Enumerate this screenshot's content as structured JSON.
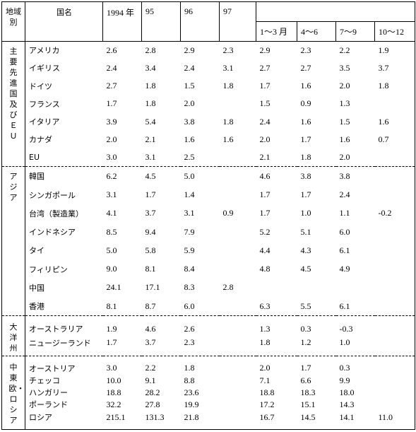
{
  "header": {
    "region": "地域別",
    "name": "国名",
    "years": [
      "1994 年",
      "95",
      "96",
      "97"
    ],
    "quarters": [
      "1〜3 月",
      "4〜6",
      "7〜9",
      "10〜12"
    ]
  },
  "groups": [
    {
      "region": "主要先進国及びＥＵ",
      "rows": [
        {
          "name": "アメリカ",
          "values": [
            "2.6",
            "2.8",
            "2.9",
            "2.3",
            "2.9",
            "2.3",
            "2.2",
            "1.9"
          ]
        },
        {
          "name": "イギリス",
          "values": [
            "2.4",
            "3.4",
            "2.4",
            "3.1",
            "2.7",
            "2.7",
            "3.5",
            "3.7"
          ]
        },
        {
          "name": "ドイツ",
          "values": [
            "2.7",
            "1.8",
            "1.5",
            "1.8",
            "1.7",
            "1.6",
            "2.0",
            "1.8"
          ]
        },
        {
          "name": "フランス",
          "values": [
            "1.7",
            "1.8",
            "2.0",
            null,
            "1.5",
            "0.9",
            "1.3",
            null
          ]
        },
        {
          "name": "イタリア",
          "values": [
            "3.9",
            "5.4",
            "3.8",
            "1.8",
            "2.4",
            "1.6",
            "1.5",
            "1.6"
          ]
        },
        {
          "name": "カナダ",
          "values": [
            "2.0",
            "2.1",
            "1.6",
            "1.6",
            "2.0",
            "1.7",
            "1.6",
            "0.7"
          ]
        },
        {
          "name": "EU",
          "values": [
            "3.0",
            "3.1",
            "2.5",
            null,
            "2.1",
            "1.8",
            "2.0",
            null
          ]
        }
      ]
    },
    {
      "region": "アジア",
      "rows": [
        {
          "name": "韓国",
          "values": [
            "6.2",
            "4.5",
            "5.0",
            null,
            "4.6",
            "3.8",
            "3.8",
            null
          ]
        },
        {
          "name": "シンガポール",
          "values": [
            "3.1",
            "1.7",
            "1.4",
            null,
            "1.7",
            "1.7",
            "2.4",
            null
          ]
        },
        {
          "name": "台湾（製造業）",
          "values": [
            "4.1",
            "3.7",
            "3.1",
            "0.9",
            "1.7",
            "1.0",
            "1.1",
            "-0.2"
          ]
        },
        {
          "name": "インドネシア",
          "values": [
            "8.5",
            "9.4",
            "7.9",
            null,
            "5.2",
            "5.1",
            "6.0",
            null
          ]
        },
        {
          "name": "タイ",
          "values": [
            "5.0",
            "5.8",
            "5.9",
            null,
            "4.4",
            "4.3",
            "6.1",
            null
          ]
        },
        {
          "name": "フィリピン",
          "values": [
            "9.0",
            "8.1",
            "8.4",
            null,
            "4.8",
            "4.5",
            "4.9",
            null
          ]
        },
        {
          "name": "中国",
          "values": [
            "24.1",
            "17.1",
            "8.3",
            "2.8",
            null,
            null,
            null,
            null
          ]
        },
        {
          "name": "香港",
          "values": [
            "8.1",
            "8.7",
            "6.0",
            null,
            "6.3",
            "5.5",
            "6.1",
            null
          ]
        }
      ]
    },
    {
      "region": "大洋州",
      "rows": [
        {
          "name": "オーストラリア",
          "values": [
            "1.9",
            "4.6",
            "2.6",
            null,
            "1.3",
            "0.3",
            "-0.3",
            null
          ]
        },
        {
          "name": "ニュージーランド",
          "values": [
            "1.7",
            "3.7",
            "2.3",
            null,
            "1.8",
            "1.2",
            "1.0",
            null
          ]
        }
      ]
    },
    {
      "region": "中東欧・ロシア",
      "rows": [
        {
          "name": "オーストリア",
          "values": [
            "3.0",
            "2.2",
            "1.8",
            null,
            "2.0",
            "1.7",
            "0.3",
            null
          ]
        },
        {
          "name": "チェッコ",
          "values": [
            "10.0",
            "9.1",
            "8.8",
            null,
            "7.1",
            "6.6",
            "9.9",
            null
          ]
        },
        {
          "name": "ハンガリー",
          "values": [
            "18.8",
            "28.2",
            "23.6",
            null,
            "18.8",
            "18.3",
            "18.0",
            null
          ]
        },
        {
          "name": "ポーランド",
          "values": [
            "32.2",
            "27.8",
            "19.9",
            null,
            "17.2",
            "15.1",
            "14.3",
            null
          ]
        },
        {
          "name": "ロシア",
          "values": [
            "215.1",
            "131.3",
            "21.8",
            null,
            "16.7",
            "14.5",
            "14.1",
            "11.0"
          ]
        }
      ]
    }
  ]
}
